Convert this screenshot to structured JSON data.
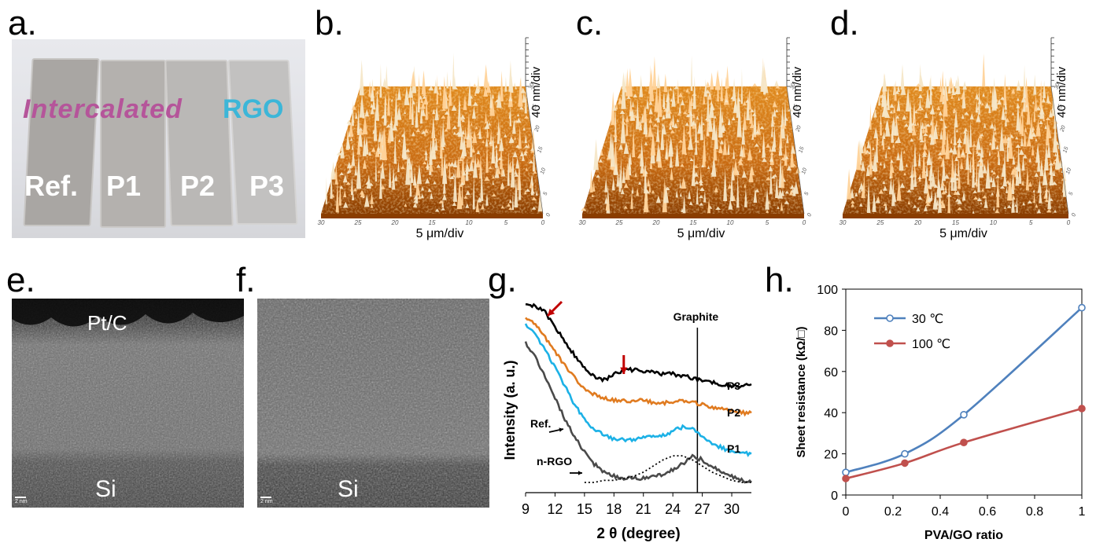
{
  "panels": {
    "a": {
      "letter": "a.",
      "word_intercalated": "Intercalated",
      "word_rgo": "RGO",
      "samples": [
        "Ref.",
        "P1",
        "P2",
        "P3"
      ]
    },
    "b": {
      "letter": "b.",
      "z_scale": "40 nm/div",
      "xy_scale": "5 μm/div"
    },
    "c": {
      "letter": "c.",
      "z_scale": "40 nm/div",
      "xy_scale": "5 μm/div"
    },
    "d": {
      "letter": "d.",
      "z_scale": "40 nm/div",
      "xy_scale": "5 μm/div"
    },
    "afm_axis_ticks": [
      "30",
      "25",
      "20",
      "15",
      "10",
      "5",
      "0"
    ],
    "e": {
      "letter": "e.",
      "top_label": "Pt/C",
      "bottom_label": "Si",
      "scale": "2 nm"
    },
    "f": {
      "letter": "f.",
      "bottom_label": "Si",
      "scale": "2 nm"
    },
    "g": {
      "letter": "g."
    },
    "h": {
      "letter": "h."
    }
  },
  "colors": {
    "afm_low": "#8a3d00",
    "afm_mid": "#e08a1e",
    "afm_high": "#f5e7c8",
    "xrd_p3": "#000000",
    "xrd_p2": "#e07b20",
    "xrd_p1": "#1cb1e6",
    "xrd_ref": "#4a4a4a",
    "sheet_30": "#4f81bd",
    "sheet_100": "#c0504d",
    "arrow_red": "#c00000"
  },
  "chart_data": [
    {
      "type": "line",
      "id": "g",
      "xlabel": "2 θ (degree)",
      "ylabel": "Intensity (a. u.)",
      "xlim": [
        9,
        32
      ],
      "x_ticks": [
        9,
        12,
        15,
        18,
        21,
        24,
        27,
        30
      ],
      "annotation_graphite": "Graphite",
      "graphite_position": 26.5,
      "red_arrow_positions": [
        10.5,
        19.0
      ],
      "labels": {
        "p3": "P3",
        "p2": "P2",
        "p1": "P1",
        "ref": "Ref.",
        "nrgo": "n-RGO"
      },
      "series": [
        {
          "name": "P3",
          "x": [
            9,
            10,
            11,
            12,
            13,
            14,
            15,
            16,
            17,
            18,
            19,
            20,
            21,
            22,
            23,
            24,
            25,
            26,
            27,
            28,
            29,
            30,
            31,
            32
          ],
          "y": [
            9.3,
            9.1,
            8.8,
            8.1,
            7.4,
            6.7,
            6.1,
            5.7,
            5.5,
            5.8,
            6.0,
            6.0,
            5.9,
            5.9,
            5.8,
            5.8,
            5.7,
            5.6,
            5.5,
            5.4,
            5.3,
            5.2,
            5.2,
            5.3
          ]
        },
        {
          "name": "P2",
          "x": [
            9,
            10,
            11,
            12,
            13,
            14,
            15,
            16,
            17,
            18,
            19,
            20,
            21,
            22,
            23,
            24,
            25,
            26,
            27,
            28,
            29,
            30,
            31,
            32
          ],
          "y": [
            8.6,
            8.2,
            7.6,
            6.9,
            6.2,
            5.6,
            5.1,
            4.8,
            4.6,
            4.5,
            4.5,
            4.5,
            4.5,
            4.4,
            4.4,
            4.4,
            4.5,
            4.4,
            4.3,
            4.2,
            4.1,
            4.0,
            3.9,
            3.9
          ]
        },
        {
          "name": "P1",
          "x": [
            9,
            10,
            11,
            12,
            13,
            14,
            15,
            16,
            17,
            18,
            19,
            20,
            21,
            22,
            23,
            24,
            25,
            26,
            27,
            28,
            29,
            30,
            31,
            32
          ],
          "y": [
            8.2,
            7.7,
            7.0,
            6.1,
            5.2,
            4.3,
            3.6,
            3.1,
            2.8,
            2.6,
            2.6,
            2.6,
            2.7,
            2.7,
            2.8,
            3.0,
            3.2,
            3.1,
            2.8,
            2.4,
            2.2,
            2.0,
            1.9,
            1.9
          ]
        },
        {
          "name": "Ref.",
          "x": [
            9,
            10,
            11,
            12,
            13,
            14,
            15,
            16,
            17,
            18,
            19,
            20,
            21,
            22,
            23,
            24,
            25,
            26,
            27,
            28,
            29,
            30,
            31,
            32
          ],
          "y": [
            7.3,
            6.6,
            5.7,
            4.6,
            3.6,
            2.7,
            2.0,
            1.4,
            1.0,
            0.8,
            0.7,
            0.7,
            0.7,
            0.8,
            0.9,
            1.1,
            1.4,
            1.8,
            1.6,
            1.3,
            1.0,
            0.8,
            0.6,
            0.5
          ]
        },
        {
          "name": "n-RGO",
          "x": [
            15,
            16,
            17,
            18,
            19,
            20,
            21,
            22,
            23,
            24,
            25,
            26,
            27,
            28,
            29,
            30,
            31,
            32
          ],
          "y": [
            0.5,
            0.5,
            0.6,
            0.6,
            0.7,
            0.8,
            1.0,
            1.3,
            1.6,
            1.8,
            1.8,
            1.6,
            1.3,
            1.0,
            0.8,
            0.6,
            0.5,
            0.5
          ]
        }
      ]
    },
    {
      "type": "line",
      "id": "h",
      "xlabel": "PVA/GO ratio",
      "ylabel": "Sheet resistance (kΩ/□)",
      "xlim": [
        0,
        1
      ],
      "ylim": [
        0,
        100
      ],
      "x_ticks": [
        "0",
        "0.2",
        "0.4",
        "0.6",
        "0.8",
        "1"
      ],
      "y_ticks": [
        "0",
        "20",
        "40",
        "60",
        "80",
        "100"
      ],
      "series": [
        {
          "name": "30 ℃",
          "x": [
            0,
            0.25,
            0.5,
            1.0
          ],
          "y": [
            11,
            20,
            39,
            91
          ]
        },
        {
          "name": "100 ℃",
          "x": [
            0,
            0.25,
            0.5,
            1.0
          ],
          "y": [
            8,
            15.5,
            25.5,
            42
          ]
        }
      ]
    }
  ]
}
